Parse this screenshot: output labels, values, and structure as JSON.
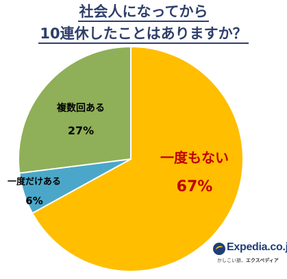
{
  "title": {
    "line1": "社会人になってから",
    "line2": "10連休したことはありますか？"
  },
  "chart_data": {
    "type": "pie",
    "title": "社会人になってから10連休したことはありますか？",
    "slices": [
      {
        "label": "一度もない",
        "value": 67,
        "display": "67%",
        "color": "#ffbe00",
        "label_color": "#c00000"
      },
      {
        "label": "一度だけある",
        "value": 6,
        "display": "6%",
        "color": "#4ba7c9",
        "label_color": "#000000"
      },
      {
        "label": "複数回ある",
        "value": 27,
        "display": "27%",
        "color": "#8faf58",
        "label_color": "#000000"
      }
    ],
    "start": "12 o'clock",
    "direction": "clockwise",
    "legend": "none"
  },
  "logo": {
    "name": "Expedia.co.jp",
    "tagline_plain": "かしこい旅、",
    "tagline_bold": "エクスペディア"
  }
}
